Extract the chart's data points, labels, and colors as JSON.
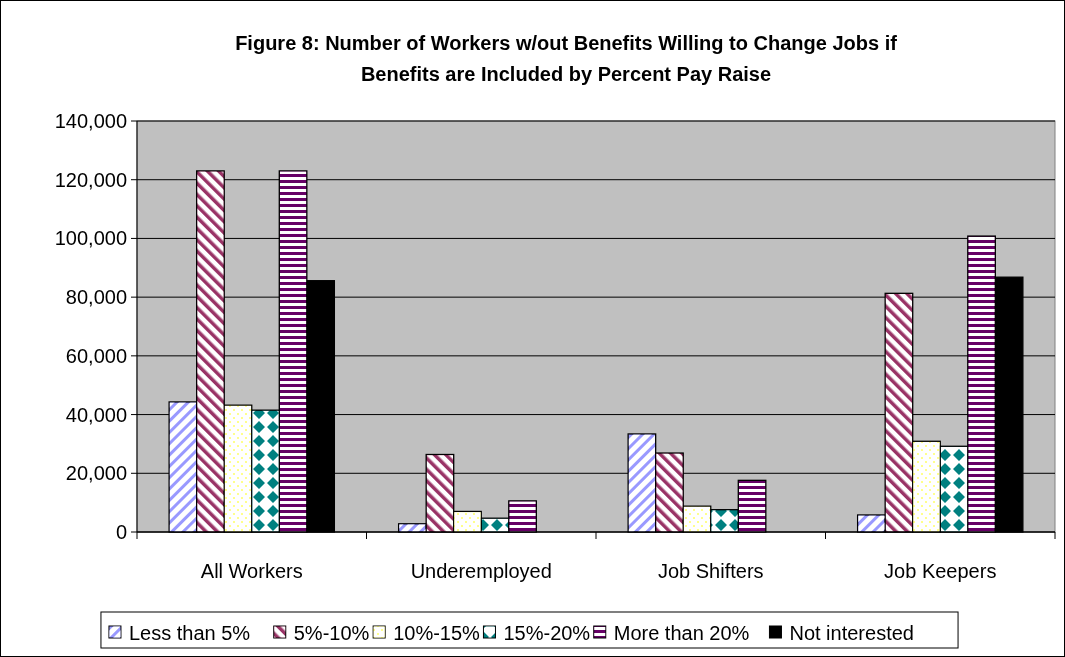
{
  "chart_data": {
    "type": "bar",
    "title": "Figure 8: Number of Workers w/out Benefits Willing to Change Jobs if\nBenefits are Included by Percent Pay Raise",
    "categories": [
      "All Workers",
      "Underemployed",
      "Job Shifters",
      "Job Keepers"
    ],
    "series": [
      {
        "name": "Less than 5%",
        "color": "#9999ff",
        "values": [
          44300,
          2800,
          33400,
          5800
        ]
      },
      {
        "name": "5%-10%",
        "color": "#993366",
        "values": [
          123000,
          26400,
          26900,
          81300
        ]
      },
      {
        "name": "10%-15%",
        "color": "#ffff66",
        "values": [
          43200,
          7000,
          8800,
          30900
        ]
      },
      {
        "name": "15%-20%",
        "color": "#008080",
        "values": [
          41500,
          4700,
          7600,
          29200
        ]
      },
      {
        "name": "More than 20%",
        "color": "#660066",
        "values": [
          123000,
          10600,
          17600,
          100800
        ]
      },
      {
        "name": "Not interested",
        "color": "#000000",
        "values": [
          85600,
          0,
          0,
          86800
        ]
      }
    ],
    "ylim": [
      0,
      140000
    ],
    "yticks": [
      {
        "value": 0,
        "label": "0"
      },
      {
        "value": 20000,
        "label": "20,000"
      },
      {
        "value": 40000,
        "label": "40,000"
      },
      {
        "value": 60000,
        "label": "60,000"
      },
      {
        "value": 80000,
        "label": "80,000"
      },
      {
        "value": 100000,
        "label": "100,000"
      },
      {
        "value": 120000,
        "label": "120,000"
      },
      {
        "value": 140000,
        "label": "140,000"
      }
    ],
    "grid": "y",
    "legend": "bottom"
  }
}
